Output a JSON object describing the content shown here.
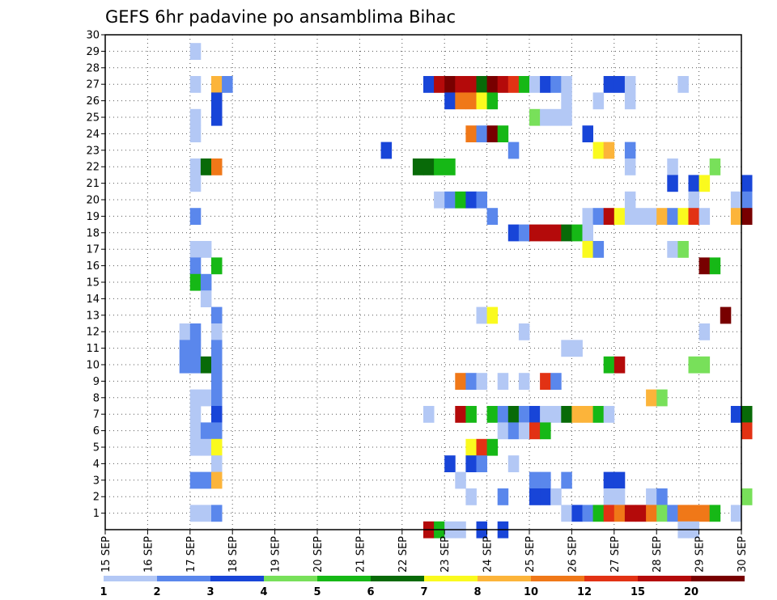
{
  "chart_data": {
    "type": "heatmap",
    "title": "GEFS 6hr padavine po ansamblima Bihac",
    "xlabel": "",
    "ylabel": "",
    "x_start": "15 SEP",
    "x_end": "30 SEP",
    "x_tick_labels": [
      "15 SEP",
      "16 SEP",
      "17 SEP",
      "18 SEP",
      "19 SEP",
      "20 SEP",
      "21 SEP",
      "22 SEP",
      "23 SEP",
      "24 SEP",
      "25 SEP",
      "26 SEP",
      "27 SEP",
      "28 SEP",
      "29 SEP",
      "30 SEP"
    ],
    "step_hours": 6,
    "y_tick_labels": [
      "1",
      "2",
      "3",
      "4",
      "5",
      "6",
      "7",
      "8",
      "9",
      "10",
      "11",
      "12",
      "13",
      "14",
      "15",
      "16",
      "17",
      "18",
      "19",
      "20",
      "21",
      "22",
      "23",
      "24",
      "25",
      "26",
      "27",
      "28",
      "29",
      "30"
    ],
    "ylim": [
      0,
      30
    ],
    "grid": true,
    "colorbar": {
      "levels": [
        "1",
        "2",
        "3",
        "4",
        "5",
        "6",
        "7",
        "8",
        "10",
        "12",
        "15",
        "20"
      ],
      "colors": [
        "#b3c8f5",
        "#5a87ec",
        "#1845d8",
        "#78e05a",
        "#16b816",
        "#086a08",
        "#fafa1e",
        "#fcb43a",
        "#f07818",
        "#e23214",
        "#b40a0a",
        "#780000"
      ]
    },
    "note_cell_format": "[member, day_offset_from_15_SEP_in_days, color_class_index]",
    "cells": [
      [
        29,
        2.0,
        0
      ],
      [
        27,
        2.0,
        0
      ],
      [
        27,
        2.5,
        7
      ],
      [
        27,
        2.75,
        1
      ],
      [
        26,
        2.5,
        2
      ],
      [
        25,
        2.0,
        0
      ],
      [
        25,
        2.5,
        2
      ],
      [
        24,
        2.0,
        0
      ],
      [
        22,
        2.0,
        0
      ],
      [
        22,
        2.25,
        5
      ],
      [
        22,
        2.5,
        8
      ],
      [
        21,
        2.0,
        0
      ],
      [
        19,
        2.0,
        1
      ],
      [
        17,
        2.0,
        0
      ],
      [
        17,
        2.25,
        0
      ],
      [
        16,
        2.0,
        1
      ],
      [
        16,
        2.5,
        4
      ],
      [
        15,
        2.0,
        4
      ],
      [
        15,
        2.25,
        1
      ],
      [
        14,
        2.25,
        0
      ],
      [
        13,
        2.5,
        1
      ],
      [
        12,
        1.75,
        0
      ],
      [
        12,
        2.0,
        1
      ],
      [
        12,
        2.5,
        0
      ],
      [
        11,
        1.75,
        1
      ],
      [
        11,
        2.0,
        1
      ],
      [
        11,
        2.5,
        1
      ],
      [
        10,
        1.75,
        1
      ],
      [
        10,
        2.0,
        1
      ],
      [
        10,
        2.25,
        5
      ],
      [
        10,
        2.5,
        1
      ],
      [
        9,
        2.5,
        1
      ],
      [
        8,
        2.0,
        0
      ],
      [
        8,
        2.25,
        0
      ],
      [
        8,
        2.5,
        1
      ],
      [
        7,
        2.0,
        0
      ],
      [
        7,
        2.5,
        2
      ],
      [
        6,
        2.0,
        0
      ],
      [
        6,
        2.25,
        1
      ],
      [
        6,
        2.5,
        1
      ],
      [
        5,
        2.0,
        0
      ],
      [
        5,
        2.25,
        0
      ],
      [
        5,
        2.5,
        6
      ],
      [
        4,
        2.5,
        0
      ],
      [
        3,
        2.0,
        1
      ],
      [
        3,
        2.25,
        1
      ],
      [
        3,
        2.5,
        7
      ],
      [
        1,
        2.0,
        0
      ],
      [
        1,
        2.25,
        0
      ],
      [
        1,
        2.5,
        1
      ],
      [
        27,
        7.5,
        2
      ],
      [
        27,
        7.75,
        10
      ],
      [
        27,
        8.0,
        11
      ],
      [
        27,
        8.25,
        10
      ],
      [
        27,
        8.5,
        10
      ],
      [
        27,
        8.75,
        5
      ],
      [
        27,
        9.0,
        11
      ],
      [
        27,
        9.25,
        10
      ],
      [
        27,
        9.5,
        9
      ],
      [
        27,
        9.75,
        4
      ],
      [
        27,
        10.0,
        0
      ],
      [
        27,
        10.25,
        2
      ],
      [
        27,
        10.5,
        1
      ],
      [
        27,
        10.75,
        0
      ],
      [
        27,
        11.75,
        2
      ],
      [
        27,
        12.0,
        2
      ],
      [
        27,
        12.25,
        0
      ],
      [
        27,
        13.5,
        0
      ],
      [
        26,
        8.0,
        2
      ],
      [
        26,
        8.25,
        8
      ],
      [
        26,
        8.5,
        8
      ],
      [
        26,
        8.75,
        6
      ],
      [
        26,
        9.0,
        4
      ],
      [
        26,
        10.75,
        0
      ],
      [
        26,
        11.5,
        0
      ],
      [
        26,
        12.25,
        0
      ],
      [
        25,
        10.0,
        3
      ],
      [
        25,
        10.25,
        0
      ],
      [
        25,
        10.5,
        0
      ],
      [
        25,
        10.75,
        0
      ],
      [
        24,
        8.5,
        8
      ],
      [
        24,
        8.75,
        1
      ],
      [
        24,
        9.0,
        11
      ],
      [
        24,
        9.25,
        4
      ],
      [
        24,
        11.25,
        2
      ],
      [
        23,
        6.5,
        2
      ],
      [
        23,
        9.5,
        1
      ],
      [
        23,
        11.5,
        6
      ],
      [
        23,
        11.75,
        7
      ],
      [
        23,
        12.25,
        1
      ],
      [
        22,
        7.25,
        5
      ],
      [
        22,
        7.5,
        5
      ],
      [
        22,
        7.75,
        4
      ],
      [
        22,
        8.0,
        4
      ],
      [
        22,
        12.25,
        0
      ],
      [
        22,
        13.25,
        0
      ],
      [
        22,
        14.25,
        3
      ],
      [
        21,
        13.25,
        2
      ],
      [
        21,
        13.75,
        2
      ],
      [
        21,
        14.0,
        6
      ],
      [
        21,
        15.0,
        2
      ],
      [
        20,
        7.75,
        0
      ],
      [
        20,
        8.0,
        1
      ],
      [
        20,
        8.25,
        4
      ],
      [
        20,
        8.5,
        2
      ],
      [
        20,
        8.75,
        1
      ],
      [
        20,
        12.25,
        0
      ],
      [
        20,
        13.75,
        0
      ],
      [
        20,
        14.75,
        0
      ],
      [
        20,
        15.0,
        1
      ],
      [
        19,
        9.0,
        1
      ],
      [
        19,
        11.25,
        0
      ],
      [
        19,
        11.5,
        1
      ],
      [
        19,
        11.75,
        10
      ],
      [
        19,
        12.0,
        6
      ],
      [
        19,
        12.25,
        0
      ],
      [
        19,
        12.5,
        0
      ],
      [
        19,
        12.75,
        0
      ],
      [
        19,
        13.0,
        7
      ],
      [
        19,
        13.25,
        1
      ],
      [
        19,
        13.5,
        6
      ],
      [
        19,
        13.75,
        9
      ],
      [
        19,
        14.0,
        0
      ],
      [
        19,
        14.75,
        7
      ],
      [
        19,
        15.0,
        11
      ],
      [
        18,
        9.5,
        2
      ],
      [
        18,
        9.75,
        1
      ],
      [
        18,
        10.0,
        10
      ],
      [
        18,
        10.25,
        10
      ],
      [
        18,
        10.5,
        10
      ],
      [
        18,
        10.75,
        5
      ],
      [
        18,
        11.0,
        4
      ],
      [
        18,
        11.25,
        0
      ],
      [
        17,
        11.25,
        6
      ],
      [
        17,
        11.5,
        1
      ],
      [
        17,
        13.25,
        0
      ],
      [
        17,
        13.5,
        3
      ],
      [
        16,
        14.0,
        11
      ],
      [
        16,
        14.25,
        4
      ],
      [
        13,
        8.75,
        0
      ],
      [
        13,
        9.0,
        6
      ],
      [
        13,
        14.5,
        11
      ],
      [
        12,
        9.75,
        0
      ],
      [
        12,
        14.0,
        0
      ],
      [
        11,
        10.75,
        0
      ],
      [
        11,
        11.0,
        0
      ],
      [
        10,
        11.75,
        4
      ],
      [
        10,
        12.0,
        10
      ],
      [
        10,
        13.75,
        3
      ],
      [
        10,
        14.0,
        3
      ],
      [
        9,
        8.25,
        8
      ],
      [
        9,
        8.5,
        1
      ],
      [
        9,
        8.75,
        0
      ],
      [
        9,
        9.25,
        0
      ],
      [
        9,
        9.75,
        0
      ],
      [
        9,
        10.25,
        9
      ],
      [
        9,
        10.5,
        1
      ],
      [
        8,
        12.75,
        7
      ],
      [
        8,
        13.0,
        3
      ],
      [
        7,
        7.5,
        0
      ],
      [
        7,
        8.25,
        10
      ],
      [
        7,
        8.5,
        4
      ],
      [
        7,
        9.0,
        4
      ],
      [
        7,
        9.25,
        1
      ],
      [
        7,
        9.5,
        5
      ],
      [
        7,
        9.75,
        1
      ],
      [
        7,
        10.0,
        2
      ],
      [
        7,
        10.25,
        0
      ],
      [
        7,
        10.5,
        0
      ],
      [
        7,
        10.75,
        5
      ],
      [
        7,
        11.0,
        7
      ],
      [
        7,
        11.25,
        7
      ],
      [
        7,
        11.5,
        4
      ],
      [
        7,
        11.75,
        0
      ],
      [
        7,
        14.75,
        2
      ],
      [
        7,
        15.0,
        5
      ],
      [
        6,
        9.25,
        0
      ],
      [
        6,
        9.5,
        1
      ],
      [
        6,
        9.75,
        0
      ],
      [
        6,
        10.0,
        9
      ],
      [
        6,
        10.25,
        4
      ],
      [
        6,
        15.0,
        9
      ],
      [
        5,
        8.5,
        6
      ],
      [
        5,
        8.75,
        9
      ],
      [
        5,
        9.0,
        4
      ],
      [
        4,
        8.0,
        2
      ],
      [
        4,
        8.5,
        2
      ],
      [
        4,
        8.75,
        1
      ],
      [
        4,
        9.5,
        0
      ],
      [
        3,
        8.25,
        0
      ],
      [
        3,
        10.0,
        1
      ],
      [
        3,
        10.25,
        1
      ],
      [
        3,
        10.75,
        1
      ],
      [
        3,
        11.75,
        2
      ],
      [
        3,
        12.0,
        2
      ],
      [
        2,
        8.5,
        0
      ],
      [
        2,
        9.25,
        1
      ],
      [
        2,
        10.0,
        2
      ],
      [
        2,
        10.25,
        2
      ],
      [
        2,
        10.5,
        0
      ],
      [
        2,
        11.75,
        0
      ],
      [
        2,
        12.0,
        0
      ],
      [
        2,
        12.75,
        0
      ],
      [
        2,
        13.0,
        1
      ],
      [
        2,
        15.0,
        3
      ],
      [
        1,
        10.75,
        0
      ],
      [
        1,
        11.0,
        2
      ],
      [
        1,
        11.25,
        1
      ],
      [
        1,
        11.5,
        4
      ],
      [
        1,
        11.75,
        9
      ],
      [
        1,
        12.0,
        8
      ],
      [
        1,
        12.25,
        10
      ],
      [
        1,
        12.5,
        10
      ],
      [
        1,
        12.75,
        8
      ],
      [
        1,
        13.0,
        3
      ],
      [
        1,
        13.25,
        1
      ],
      [
        1,
        13.5,
        8
      ],
      [
        1,
        13.75,
        8
      ],
      [
        1,
        14.0,
        8
      ],
      [
        1,
        14.25,
        4
      ],
      [
        1,
        14.75,
        0
      ],
      [
        0,
        7.5,
        10
      ],
      [
        0,
        7.75,
        4
      ],
      [
        0,
        8.0,
        0
      ],
      [
        0,
        8.25,
        0
      ],
      [
        0,
        8.75,
        2
      ],
      [
        0,
        9.25,
        2
      ],
      [
        0,
        13.5,
        0
      ],
      [
        0,
        13.75,
        0
      ]
    ]
  }
}
